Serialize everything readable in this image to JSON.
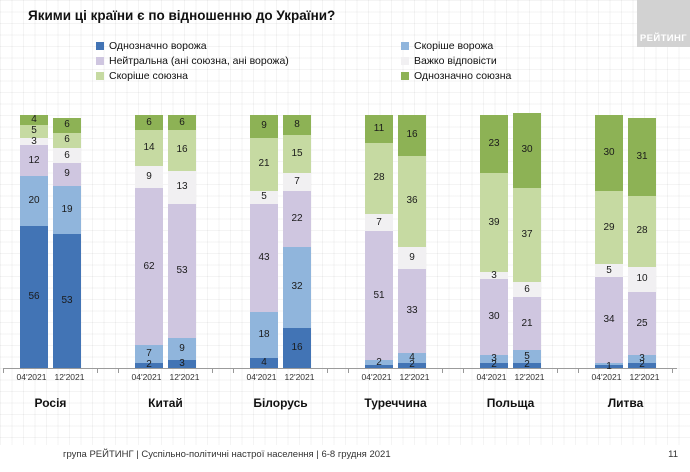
{
  "title": "Якими ці країни є по відношенню до України?",
  "logo": {
    "text": "РЕЙТИНГ"
  },
  "legend": {
    "columns": [
      {
        "items": [
          {
            "label": "Однозначно ворожа",
            "color": "#4274B5"
          },
          {
            "label": "Нейтральна (ані союзна, ані ворожа)",
            "color": "#CFC6E0"
          },
          {
            "label": "Скоріше союзна",
            "color": "#C6DAA2"
          }
        ]
      },
      {
        "items": [
          {
            "label": "Скоріше ворожа",
            "color": "#90B5DC"
          },
          {
            "label": "Важко відповісти",
            "color": "#F1F0F2"
          },
          {
            "label": "Однозначно союзна",
            "color": "#8DB255"
          }
        ]
      }
    ]
  },
  "chart_data": {
    "type": "bar",
    "stacked": true,
    "unit": "%",
    "ylim": [
      0,
      100
    ],
    "legend_position": "top",
    "grid": "faint background grid",
    "series_bottom_to_top": [
      "Однозначно ворожа",
      "Скоріше ворожа",
      "Нейтральна (ані союзна, ані ворожа)",
      "Важко відповісти",
      "Скоріше союзна",
      "Однозначно союзна"
    ],
    "colors": [
      "#4274B5",
      "#90B5DC",
      "#CFC6E0",
      "#F1F0F2",
      "#C6DAA2",
      "#8DB255"
    ],
    "groups": [
      {
        "country": "Росія",
        "bars": [
          {
            "period": "04'2021",
            "values": [
              56,
              20,
              12,
              3,
              5,
              4
            ],
            "labels": [
              "56",
              "20",
              "12",
              "3",
              "5",
              "4"
            ]
          },
          {
            "period": "12'2021",
            "values": [
              53,
              19,
              9,
              6,
              6,
              6
            ],
            "labels": [
              "53",
              "19",
              "9",
              "6",
              "6",
              "6"
            ]
          }
        ]
      },
      {
        "country": "Китай",
        "bars": [
          {
            "period": "04'2021",
            "values": [
              2,
              7,
              62,
              9,
              14,
              6
            ],
            "labels": [
              "2",
              "7",
              "62",
              "9",
              "14",
              "6"
            ]
          },
          {
            "period": "12'2021",
            "values": [
              3,
              9,
              53,
              13,
              16,
              6
            ],
            "labels": [
              "3",
              "9",
              "53",
              "13",
              "16",
              "6"
            ]
          }
        ]
      },
      {
        "country": "Білорусь",
        "bars": [
          {
            "period": "04'2021",
            "values": [
              4,
              18,
              43,
              5,
              21,
              9
            ],
            "labels": [
              "4",
              "18",
              "43",
              "5",
              "21",
              "9"
            ]
          },
          {
            "period": "12'2021",
            "values": [
              16,
              32,
              22,
              7,
              15,
              8
            ],
            "labels": [
              "16",
              "32",
              "22",
              "7",
              "15",
              "8"
            ]
          }
        ]
      },
      {
        "country": "Туреччина",
        "bars": [
          {
            "period": "04'2021",
            "values": [
              1,
              2,
              51,
              7,
              28,
              11
            ],
            "labels": [
              "",
              "2",
              "51",
              "7",
              "28",
              "11"
            ]
          },
          {
            "period": "12'2021",
            "values": [
              2,
              4,
              33,
              9,
              36,
              16
            ],
            "labels": [
              "2",
              "4",
              "33",
              "9",
              "36",
              "16"
            ]
          }
        ]
      },
      {
        "country": "Польща",
        "bars": [
          {
            "period": "04'2021",
            "values": [
              2,
              3,
              30,
              3,
              39,
              23
            ],
            "labels": [
              "2",
              "3",
              "30",
              "3",
              "39",
              "23"
            ]
          },
          {
            "period": "12'2021",
            "values": [
              2,
              5,
              21,
              6,
              37,
              30
            ],
            "labels": [
              "2",
              "5",
              "21",
              "6",
              "37",
              "30"
            ]
          }
        ]
      },
      {
        "country": "Литва",
        "bars": [
          {
            "period": "04'2021",
            "values": [
              1,
              1,
              34,
              5,
              29,
              30
            ],
            "labels": [
              "1",
              "",
              "34",
              "5",
              "29",
              "30"
            ]
          },
          {
            "period": "12'2021",
            "values": [
              2,
              3,
              25,
              10,
              28,
              31
            ],
            "labels": [
              "2",
              "3",
              "25",
              "10",
              "28",
              "31"
            ]
          }
        ]
      }
    ]
  },
  "footer": {
    "left": "група РЕЙТИНГ | Суспільно-політичні настрої населення  | 6-8 грудня 2021",
    "page": "11"
  }
}
